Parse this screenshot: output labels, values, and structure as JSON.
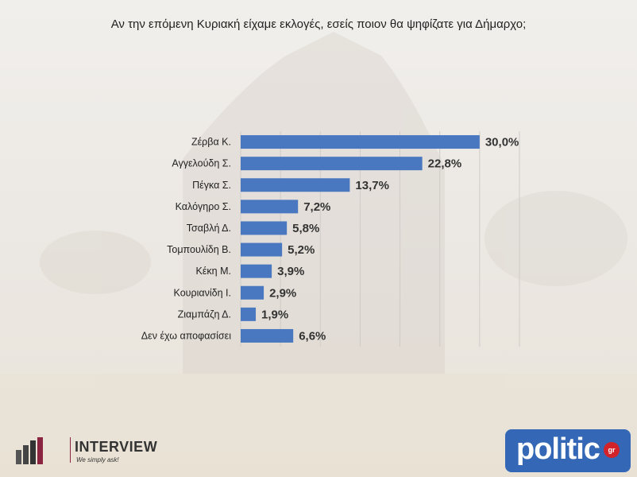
{
  "title": "Αν την επόμενη Κυριακή είχαμε εκλογές, εσείς ποιον θα ψηφίζατε για Δήμαρχο;",
  "chart_data": {
    "type": "bar",
    "orientation": "horizontal",
    "categories": [
      "Ζέρβα Κ.",
      "Αγγελούδη Σ.",
      "Πέγκα Σ.",
      "Καλόγηρο Σ.",
      "Τσαβλή Δ.",
      "Τομπουλίδη Β.",
      "Κέκη Μ.",
      "Κουριανίδη Ι.",
      "Ζιαμπάζη Δ.",
      "Δεν έχω αποφασίσει"
    ],
    "values": [
      30.0,
      22.8,
      13.7,
      7.2,
      5.8,
      5.2,
      3.9,
      2.9,
      1.9,
      6.6
    ],
    "value_labels": [
      "30,0%",
      "22,8%",
      "13,7%",
      "7,2%",
      "5,8%",
      "5,2%",
      "3,9%",
      "2,9%",
      "1,9%",
      "6,6%"
    ],
    "xlim": [
      0,
      35
    ],
    "grid": true,
    "bar_color": "#4a78c0"
  },
  "logos": {
    "interview": {
      "name": "INTERVIEW",
      "tagline": "We simply ask!",
      "accent": "#8a2440"
    },
    "politic": {
      "word": "politic",
      "badge": "gr",
      "background": "#3468b6",
      "badge_color": "#d2232a"
    }
  }
}
